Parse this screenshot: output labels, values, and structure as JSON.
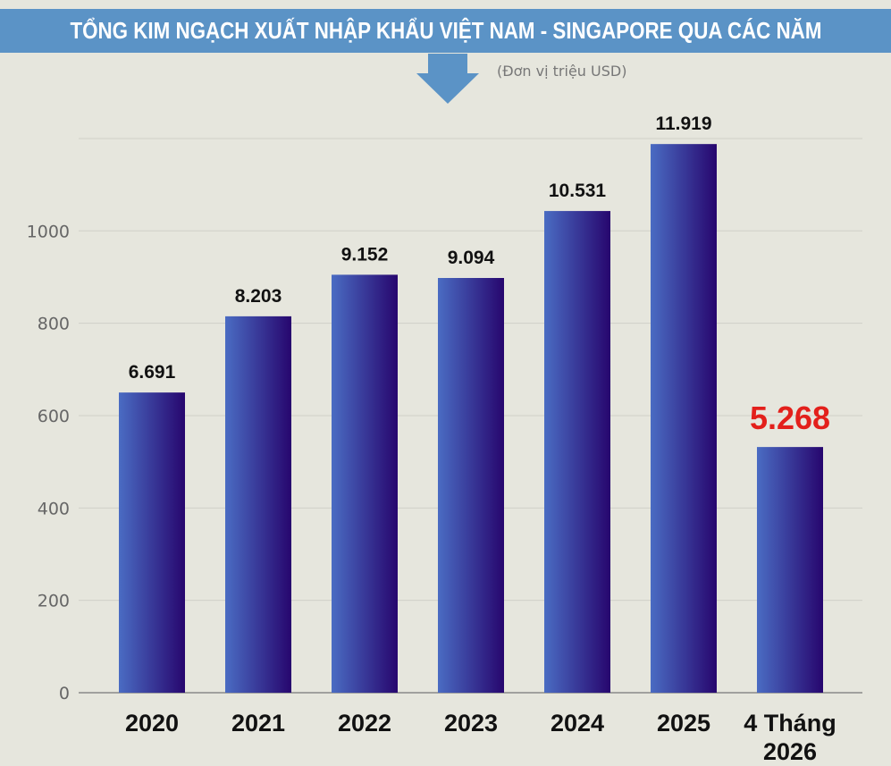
{
  "header": {
    "title": "TỔNG KIM NGẠCH XUẤT NHẬP KHẨU VIỆT NAM - SINGAPORE QUA CÁC NĂM",
    "unit_note": "(Đơn vị triệu USD)"
  },
  "colors": {
    "title_bar": "#5b93c6",
    "bar_left": "#4a6cc3",
    "bar_right": "#27066e",
    "highlight_label": "#e3201b",
    "background": "#e6e6dd"
  },
  "chart_data": {
    "type": "bar",
    "categories": [
      "2020",
      "2021",
      "2022",
      "2023",
      "2024",
      "2025",
      "4 Tháng 2026"
    ],
    "values": [
      650,
      815,
      905,
      898,
      1043,
      1188,
      532
    ],
    "data_labels": [
      "6.691",
      "8.203",
      "9.152",
      "9.094",
      "10.531",
      "11.919",
      "5.268"
    ],
    "highlight_index": 6,
    "yticks": [
      "0",
      "200",
      "400",
      "600",
      "800",
      "1000"
    ],
    "ylim": [
      0,
      1200
    ],
    "grid": true
  }
}
